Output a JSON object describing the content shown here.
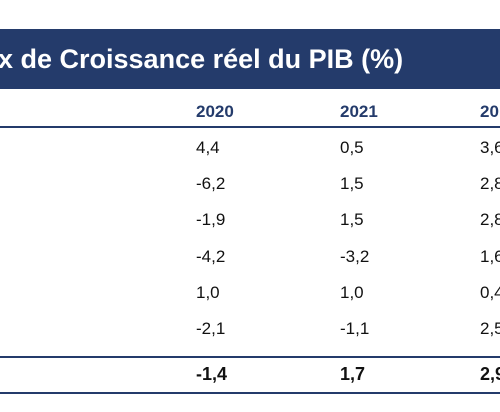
{
  "title": "x de Croissance réel du PIB (%)",
  "columns": [
    "2020",
    "2021",
    "20"
  ],
  "rows": [
    [
      "4,4",
      "0,5",
      "3,6"
    ],
    [
      "-6,2",
      "1,5",
      "2,8"
    ],
    [
      "-1,9",
      "1,5",
      "2,8"
    ],
    [
      "-4,2",
      "-3,2",
      "1,6"
    ],
    [
      "1,0",
      "1,0",
      "0,4"
    ],
    [
      "-2,1",
      "-1,1",
      "2,5"
    ]
  ],
  "total": [
    "-1,4",
    "1,7",
    "2,9"
  ],
  "colors": {
    "header_bg": "#243b6b",
    "header_text": "#ffffff",
    "accent": "#243b6b"
  }
}
